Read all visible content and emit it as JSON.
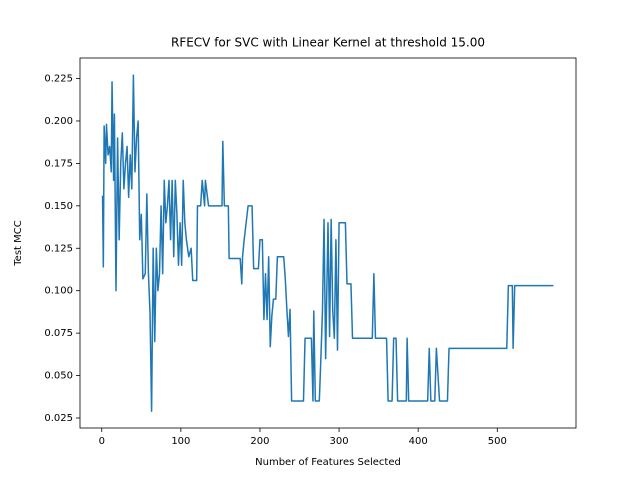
{
  "chart_data": {
    "type": "line",
    "title": "RFECV for SVC with Linear Kernel at threshold 15.00",
    "xlabel": "Number of Features Selected",
    "ylabel": "Test MCC",
    "color": "#1f77b4",
    "xlim": [
      -27.5,
      599.5
    ],
    "ylim": [
      0.0191,
      0.2371
    ],
    "xticks": [
      0,
      100,
      200,
      300,
      400,
      500
    ],
    "yticks": [
      0.025,
      {
        "value": 0.05,
        "label": "0.050"
      },
      0.075,
      {
        "value": 0.1,
        "label": "0.100"
      },
      0.125,
      {
        "value": 0.15,
        "label": "0.150"
      },
      0.175,
      {
        "value": 0.2,
        "label": "0.200"
      },
      0.225
    ],
    "x": [
      1,
      2,
      3,
      5,
      6,
      8,
      10,
      12,
      13,
      15,
      16,
      18,
      20,
      22,
      24,
      26,
      28,
      30,
      32,
      34,
      36,
      38,
      40,
      42,
      44,
      46,
      48,
      50,
      52,
      55,
      57,
      59,
      61,
      63,
      65,
      67,
      69,
      71,
      73,
      75,
      77,
      79,
      81,
      83,
      85,
      87,
      89,
      91,
      93,
      95,
      97,
      99,
      101,
      103,
      105,
      107,
      110,
      113,
      115,
      120,
      121,
      125,
      127,
      130,
      131,
      135,
      152,
      153,
      155,
      160,
      161,
      175,
      177,
      178,
      180,
      185,
      190,
      192,
      198,
      200,
      203,
      205,
      207,
      209,
      211,
      213,
      215,
      217,
      220,
      222,
      230,
      232,
      234,
      236,
      238,
      240,
      255,
      257,
      265,
      267,
      268,
      270,
      275,
      277,
      279,
      281,
      283,
      286,
      288,
      290,
      292,
      294,
      296,
      298,
      300,
      308,
      310,
      315,
      317,
      342,
      344,
      346,
      360,
      362,
      367,
      369,
      372,
      374,
      385,
      386,
      388,
      412,
      414,
      416,
      421,
      423,
      427,
      437,
      439,
      512,
      514,
      519,
      520,
      522,
      571
    ],
    "values": [
      0.156,
      0.114,
      0.197,
      0.175,
      0.198,
      0.18,
      0.185,
      0.17,
      0.223,
      0.165,
      0.204,
      0.1,
      0.19,
      0.13,
      0.175,
      0.193,
      0.16,
      0.175,
      0.185,
      0.155,
      0.18,
      0.16,
      0.227,
      0.17,
      0.19,
      0.2,
      0.13,
      0.145,
      0.107,
      0.11,
      0.157,
      0.11,
      0.087,
      0.029,
      0.125,
      0.07,
      0.125,
      0.1,
      0.11,
      0.15,
      0.11,
      0.165,
      0.14,
      0.15,
      0.165,
      0.13,
      0.165,
      0.12,
      0.165,
      0.145,
      0.115,
      0.14,
      0.115,
      0.165,
      0.14,
      0.13,
      0.12,
      0.125,
      0.106,
      0.106,
      0.15,
      0.15,
      0.165,
      0.15,
      0.165,
      0.15,
      0.15,
      0.188,
      0.15,
      0.15,
      0.119,
      0.119,
      0.104,
      0.12,
      0.13,
      0.15,
      0.15,
      0.113,
      0.113,
      0.13,
      0.13,
      0.083,
      0.11,
      0.083,
      0.12,
      0.067,
      0.085,
      0.095,
      0.095,
      0.12,
      0.12,
      0.107,
      0.089,
      0.073,
      0.089,
      0.035,
      0.035,
      0.072,
      0.072,
      0.035,
      0.088,
      0.035,
      0.035,
      0.06,
      0.088,
      0.142,
      0.06,
      0.14,
      0.073,
      0.142,
      0.088,
      0.072,
      0.13,
      0.065,
      0.14,
      0.14,
      0.104,
      0.104,
      0.072,
      0.072,
      0.11,
      0.072,
      0.072,
      0.035,
      0.035,
      0.072,
      0.072,
      0.035,
      0.035,
      0.072,
      0.035,
      0.035,
      0.066,
      0.035,
      0.035,
      0.066,
      0.035,
      0.035,
      0.066,
      0.066,
      0.103,
      0.103,
      0.066,
      0.103,
      0.103
    ]
  }
}
